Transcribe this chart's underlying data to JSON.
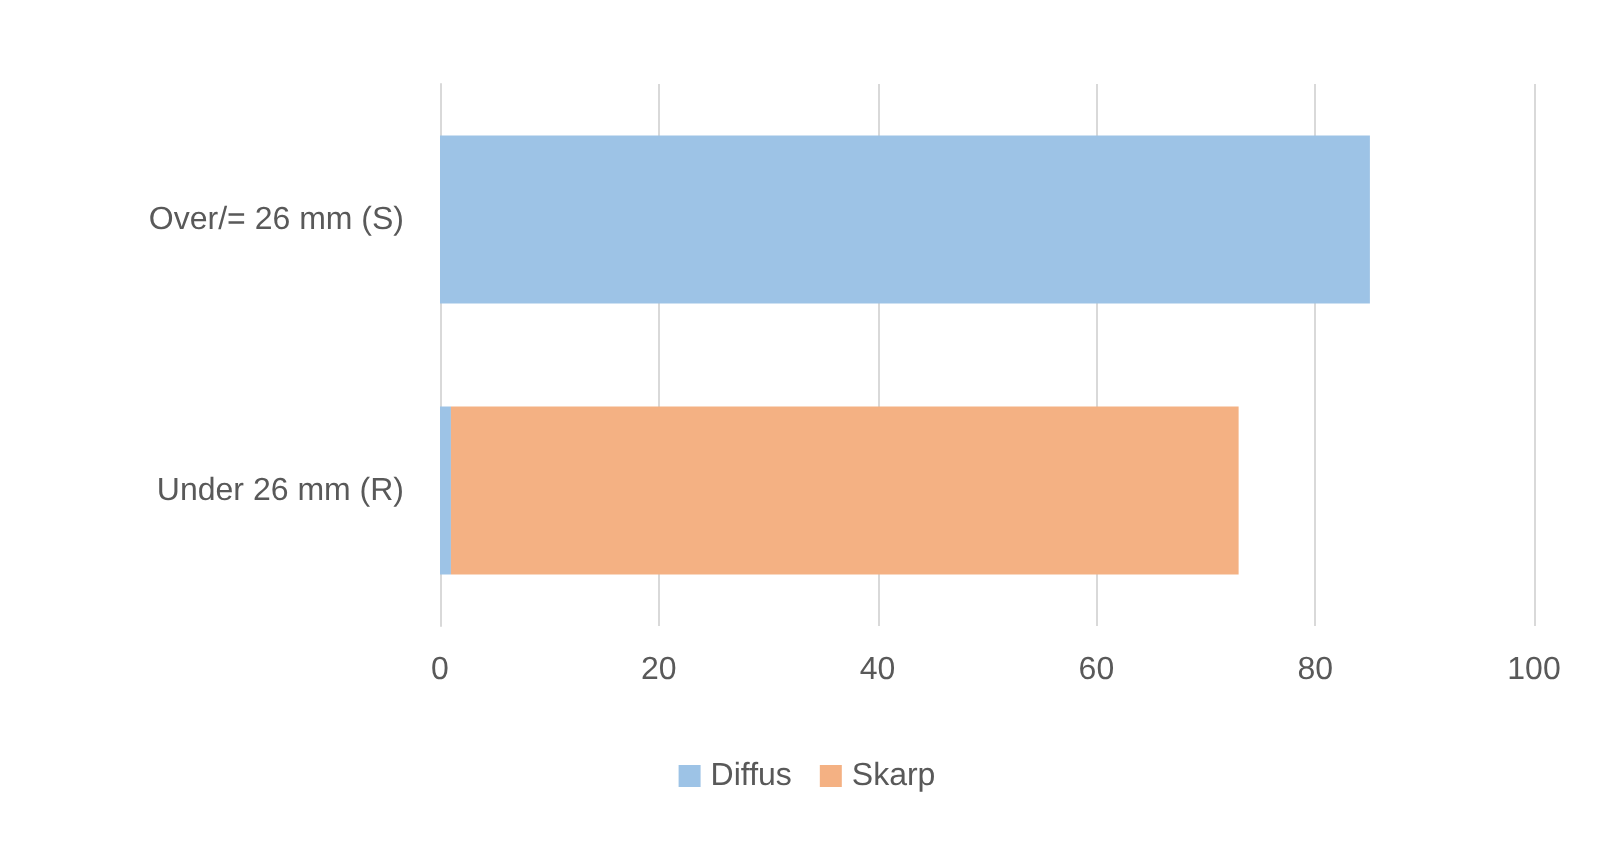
{
  "chart_data": {
    "type": "bar",
    "orientation": "horizontal",
    "stacked": true,
    "categories": [
      "Over/= 26 mm (S)",
      "Under 26 mm (R)"
    ],
    "series": [
      {
        "name": "Diffus",
        "color": "#9dc3e6",
        "values": [
          85,
          1
        ]
      },
      {
        "name": "Skarp",
        "color": "#f4b183",
        "values": [
          0,
          72
        ]
      }
    ],
    "xlim": [
      0,
      100
    ],
    "xticks": [
      0,
      20,
      40,
      60,
      80,
      100
    ],
    "grid": "x",
    "legend": "bottom"
  }
}
